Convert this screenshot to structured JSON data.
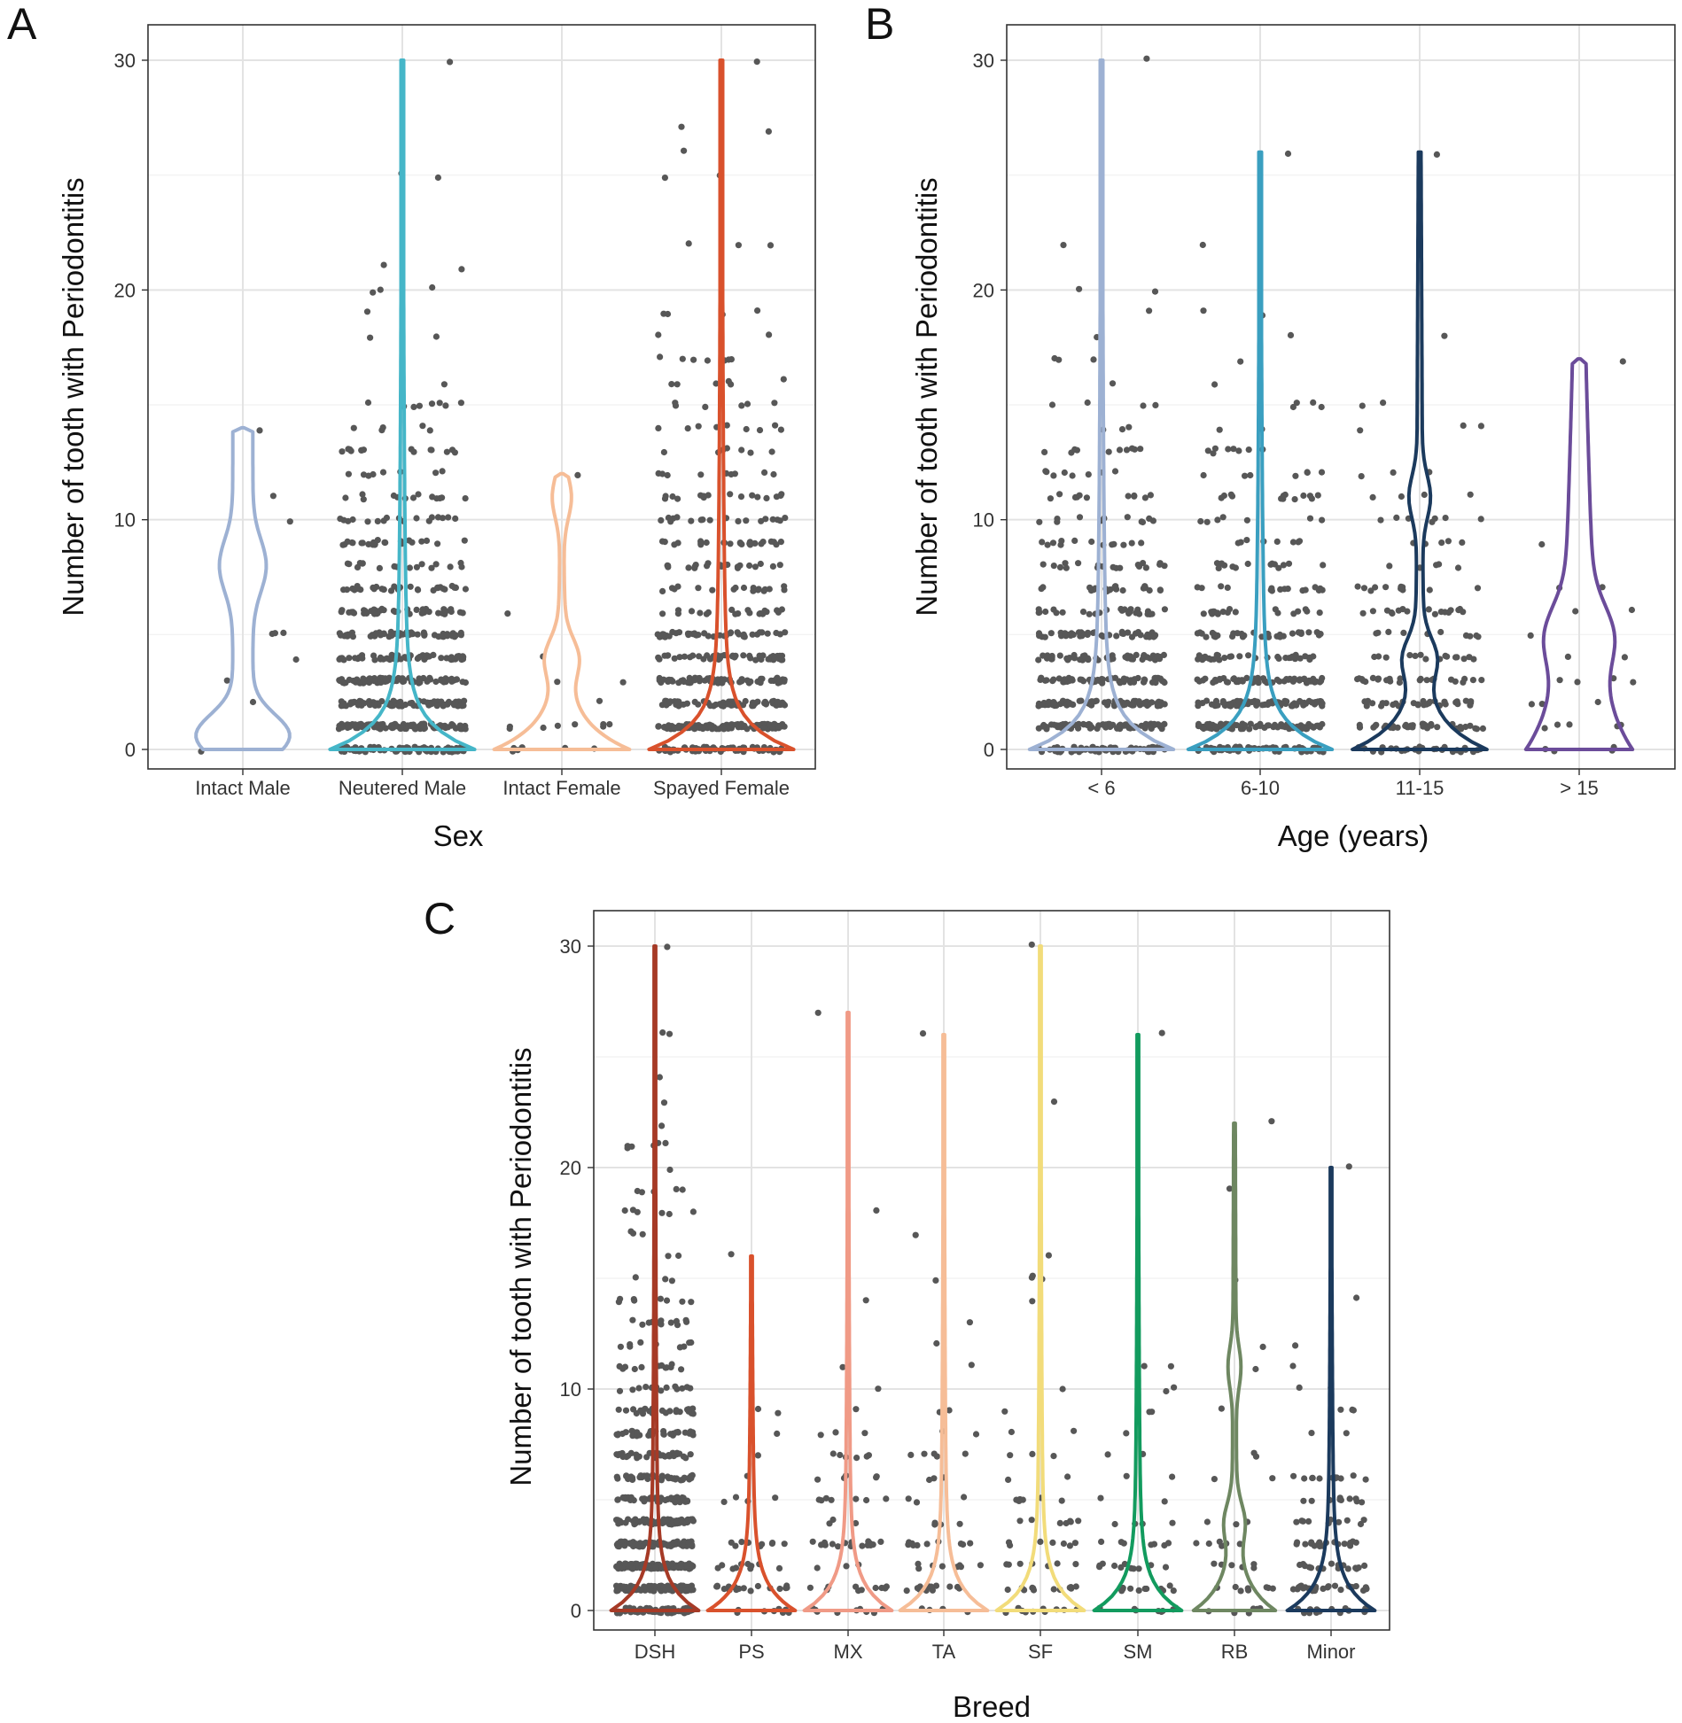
{
  "colors": {
    "point": "#575757",
    "grid": "#e3e3e3",
    "frame": "#333333"
  },
  "chart_data": [
    {
      "panel": "A",
      "type": "violin",
      "xlabel": "Sex",
      "ylabel": "Number of tooth with Periodontitis",
      "ylim": [
        0,
        30
      ],
      "yticks": [
        "0",
        "10",
        "20",
        "30"
      ],
      "grid": true,
      "categories": [
        "Intact Male",
        "Neutered Male",
        "Intact Female",
        "Spayed Female"
      ],
      "max_values": [
        14,
        30,
        12,
        30
      ],
      "point_counts": [
        10,
        650,
        20,
        560
      ],
      "colors": [
        "#9db1d3",
        "#45b6c8",
        "#f6bd97",
        "#d9512c"
      ],
      "shapes": [
        "bi",
        "mono",
        "mid",
        "mono"
      ]
    },
    {
      "panel": "B",
      "type": "violin",
      "xlabel": "Age (years)",
      "ylabel": "Number of tooth with Periodontitis",
      "ylim": [
        0,
        30
      ],
      "yticks": [
        "0",
        "10",
        "20",
        "30"
      ],
      "grid": true,
      "categories": [
        "< 6",
        "6-10",
        "11-15",
        "> 15"
      ],
      "max_values": [
        30,
        26,
        26,
        17
      ],
      "point_counts": [
        520,
        450,
        210,
        25
      ],
      "colors": [
        "#9db1d3",
        "#3a9fc0",
        "#1b3a5d",
        "#6b4c9a"
      ],
      "shapes": [
        "mono",
        "mono",
        "mid",
        "wide"
      ]
    },
    {
      "panel": "C",
      "type": "violin",
      "xlabel": "Breed",
      "ylabel": "Number of tooth with Periodontitis",
      "ylim": [
        0,
        30
      ],
      "yticks": [
        "0",
        "10",
        "20",
        "30"
      ],
      "grid": true,
      "categories": [
        "DSH",
        "PS",
        "MX",
        "TA",
        "SF",
        "SM",
        "RB",
        "Minor"
      ],
      "max_values": [
        30,
        16,
        27,
        26,
        30,
        26,
        22,
        20
      ],
      "point_counts": [
        700,
        55,
        70,
        60,
        65,
        55,
        40,
        120
      ],
      "colors": [
        "#a63a26",
        "#d9512c",
        "#f09a86",
        "#f6bd97",
        "#f2dc7a",
        "#129b5e",
        "#6e8761",
        "#1b3a5d"
      ],
      "shapes": [
        "mono",
        "mono",
        "mono",
        "mono",
        "mono",
        "mono",
        "mid",
        "mono"
      ]
    }
  ]
}
